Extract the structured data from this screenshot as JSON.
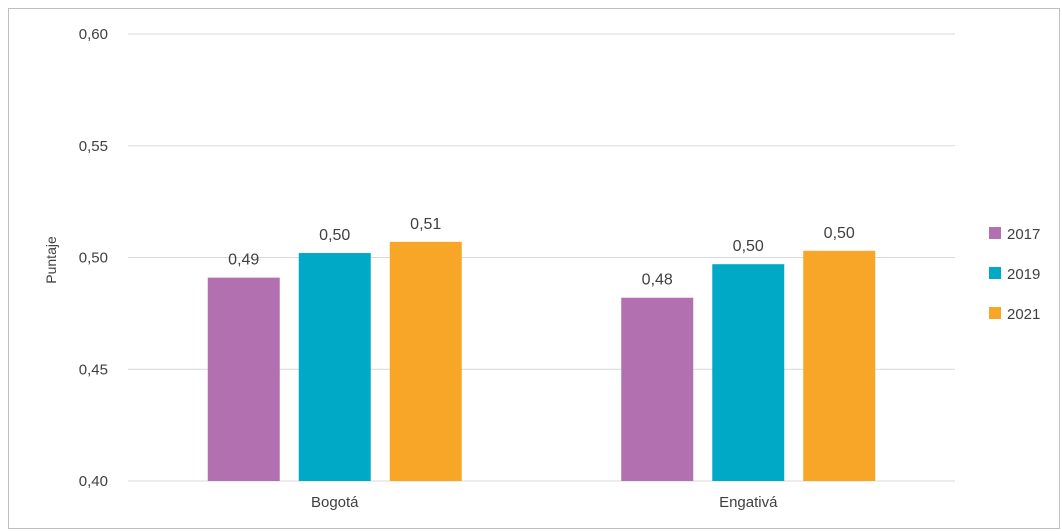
{
  "chart_data": {
    "type": "bar",
    "title": "",
    "xlabel": "",
    "ylabel": "Puntaje",
    "ylim": [
      0.4,
      0.6
    ],
    "yticks": [
      "0,40",
      "0,45",
      "0,50",
      "0,55",
      "0,60"
    ],
    "ytick_values": [
      0.4,
      0.45,
      0.5,
      0.55,
      0.6
    ],
    "categories": [
      "Bogotá",
      "Engativá"
    ],
    "series": [
      {
        "name": "2017",
        "color": "#b370b0",
        "values": [
          0.491,
          0.482
        ],
        "labels": [
          "0,49",
          "0,48"
        ]
      },
      {
        "name": "2019",
        "color": "#00aac7",
        "values": [
          0.502,
          0.497
        ],
        "labels": [
          "0,50",
          "0,50"
        ]
      },
      {
        "name": "2021",
        "color": "#f7a628",
        "values": [
          0.507,
          0.503
        ],
        "labels": [
          "0,51",
          "0,50"
        ]
      }
    ],
    "grid": true,
    "legend_position": "right"
  }
}
